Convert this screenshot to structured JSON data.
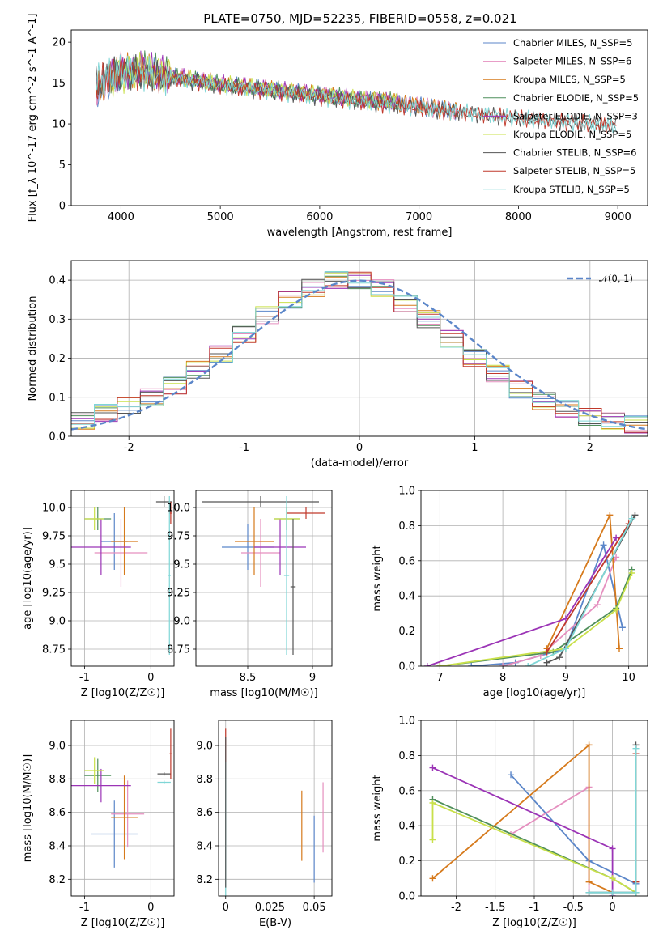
{
  "figure_title": "PLATE=0750, MJD=52235, FIBERID=0558, z=0.021",
  "chart_data": [
    {
      "id": "spectrum",
      "type": "line",
      "xlabel": "wavelength [Angstrom, rest frame]",
      "ylabel": "Flux [f_λ 10^-17 erg cm^-2 s^-1 A^-1]",
      "xlim": [
        3500,
        9300
      ],
      "ylim": [
        0,
        21.5
      ],
      "xticks": [
        4000,
        5000,
        6000,
        7000,
        8000,
        9000
      ],
      "yticks": [
        0,
        5,
        10,
        15,
        20
      ],
      "grid": false,
      "legend_position": "top-right",
      "series": [
        {
          "name": "Chabrier MILES, N_SSP=5",
          "color": "#5b86c9",
          "x": [
            3750,
            4000,
            4500,
            5000,
            5500,
            6000,
            6500,
            6800,
            7000,
            7200,
            7400
          ],
          "y": [
            14,
            16.5,
            15.8,
            14.8,
            14.2,
            13.5,
            12.8,
            12.5,
            12.2,
            11.8,
            11.5
          ]
        },
        {
          "name": "Salpeter MILES, N_SSP=6",
          "color": "#e58fbf",
          "x": [
            3750,
            4000,
            4500,
            5000,
            5500,
            6000,
            6500,
            6800,
            7000,
            7200,
            7400
          ],
          "y": [
            14,
            16.6,
            15.9,
            14.8,
            14.2,
            13.5,
            12.9,
            12.5,
            12.2,
            11.8,
            11.5
          ]
        },
        {
          "name": "Kroupa MILES, N_SSP=5",
          "color": "#d67a1c",
          "x": [
            3750,
            4000,
            4500,
            5000,
            5500,
            6000,
            6500,
            6800,
            7000,
            7200,
            7400
          ],
          "y": [
            14,
            16.6,
            15.9,
            14.9,
            14.2,
            13.6,
            12.9,
            12.6,
            12.2,
            11.8,
            11.5
          ]
        },
        {
          "name": "Chabrier ELODIE, N_SSP=5",
          "color": "#4f8f5b",
          "x": [
            3900,
            4200,
            4500,
            5000,
            5500,
            6000,
            6500,
            6800
          ],
          "y": [
            15.5,
            16.8,
            15.9,
            14.9,
            14.3,
            13.6,
            13,
            12.7
          ]
        },
        {
          "name": "Salpeter ELODIE, N_SSP=3",
          "color": "#9b34b6",
          "x": [
            3900,
            4200,
            4500,
            5000,
            5500,
            6000,
            6500,
            6800
          ],
          "y": [
            15.6,
            16.9,
            16,
            14.9,
            14.3,
            13.6,
            13,
            12.7
          ]
        },
        {
          "name": "Kroupa ELODIE, N_SSP=5",
          "color": "#c9e04a",
          "x": [
            3900,
            4200,
            4500,
            5000,
            5500,
            6000,
            6500,
            6800
          ],
          "y": [
            15.5,
            16.8,
            15.9,
            14.9,
            14.3,
            13.6,
            13,
            12.8
          ]
        },
        {
          "name": "Chabrier STELIB, N_SSP=6",
          "color": "#555555",
          "x": [
            3750,
            4000,
            4500,
            5000,
            5500,
            6000,
            6500,
            7000,
            7500,
            8000,
            8500,
            9000
          ],
          "y": [
            15,
            16.4,
            15.6,
            14.6,
            14,
            13.3,
            12.6,
            12,
            11.3,
            10.7,
            10.2,
            9.8
          ]
        },
        {
          "name": "Salpeter STELIB, N_SSP=5",
          "color": "#c0392b",
          "x": [
            3750,
            4000,
            4500,
            5000,
            5500,
            6000,
            6500,
            7000,
            7500,
            8000,
            8500,
            9000
          ],
          "y": [
            15,
            16.5,
            15.6,
            14.7,
            14,
            13.3,
            12.6,
            12,
            11.3,
            10.7,
            10.2,
            9.8
          ]
        },
        {
          "name": "Kroupa STELIB, N_SSP=5",
          "color": "#7fd6d6",
          "x": [
            3750,
            4000,
            4500,
            5000,
            5500,
            6000,
            6500,
            7000,
            7500,
            8000,
            8500,
            9000
          ],
          "y": [
            15,
            16.5,
            15.6,
            14.7,
            14,
            13.3,
            12.6,
            12,
            11.4,
            10.7,
            10.2,
            9.8
          ]
        }
      ]
    },
    {
      "id": "residuals",
      "type": "line",
      "xlabel": "(data-model)/error",
      "ylabel": "Normed distribution",
      "xlim": [
        -2.5,
        2.5
      ],
      "ylim": [
        0,
        0.45
      ],
      "xticks": [
        -2,
        -1,
        0,
        1,
        2
      ],
      "yticks": [
        0.0,
        0.1,
        0.2,
        0.3,
        0.4
      ],
      "grid": true,
      "legend_position": "top-right",
      "legend": "𝒩(0, 1)",
      "gaussian_color": "#5b86c9",
      "histogram_bins_x": [
        -2.5,
        -2.3,
        -2.1,
        -1.9,
        -1.7,
        -1.5,
        -1.3,
        -1.1,
        -0.9,
        -0.7,
        -0.5,
        -0.3,
        -0.1,
        0.1,
        0.3,
        0.5,
        0.7,
        0.9,
        1.1,
        1.3,
        1.5,
        1.7,
        1.9,
        2.1,
        2.3,
        2.5
      ],
      "histogram_values": [
        0.04,
        0.06,
        0.08,
        0.1,
        0.13,
        0.17,
        0.21,
        0.26,
        0.31,
        0.35,
        0.38,
        0.4,
        0.4,
        0.38,
        0.34,
        0.3,
        0.25,
        0.2,
        0.16,
        0.12,
        0.09,
        0.07,
        0.05,
        0.04,
        0.03
      ]
    },
    {
      "id": "age_vs_Z",
      "type": "scatter",
      "xlabel": "Z [log10(Z/Z☉)]",
      "ylabel": "age [log10(age/yr)]",
      "xlim": [
        -1.2,
        0.35
      ],
      "ylim": [
        8.6,
        10.15
      ],
      "xticks": [
        -1,
        0
      ],
      "yticks": [
        8.75,
        9.0,
        9.25,
        9.5,
        9.75,
        10.0
      ],
      "grid": true,
      "points": [
        {
          "color": "#5b86c9",
          "x": -0.55,
          "xerr": 0.2,
          "y": 9.7,
          "yerr": 0.25
        },
        {
          "color": "#e58fbf",
          "x": -0.45,
          "xerr": 0.4,
          "y": 9.6,
          "yerr": 0.3
        },
        {
          "color": "#d67a1c",
          "x": -0.4,
          "xerr": 0.2,
          "y": 9.7,
          "yerr": 0.3
        },
        {
          "color": "#4f8f5b",
          "x": -0.8,
          "xerr": 0.2,
          "y": 9.9,
          "yerr": 0.1
        },
        {
          "color": "#9b34b6",
          "x": -0.75,
          "xerr": 0.45,
          "y": 9.65,
          "yerr": 0.25
        },
        {
          "color": "#c9e04a",
          "x": -0.85,
          "xerr": 0.15,
          "y": 9.9,
          "yerr": 0.1
        },
        {
          "color": "#555555",
          "x": 0.2,
          "xerr": 0.12,
          "y": 10.05,
          "yerr": 0.05
        },
        {
          "color": "#c0392b",
          "x": 0.3,
          "xerr": 0.02,
          "y": 9.95,
          "yerr": 0.1
        },
        {
          "color": "#7fd6d6",
          "x": 0.28,
          "xerr": 0.02,
          "y": 9.4,
          "yerr": 0.7
        }
      ]
    },
    {
      "id": "age_vs_mass",
      "type": "scatter",
      "xlabel": "mass [log10(M/M☉)]",
      "ylabel": "",
      "xlim": [
        8.1,
        9.15
      ],
      "ylim": [
        8.6,
        10.15
      ],
      "xticks": [
        8.5,
        9.0
      ],
      "yticks": [
        8.75,
        9.0,
        9.25,
        9.5,
        9.75,
        10.0
      ],
      "grid": true,
      "points": [
        {
          "color": "#5b86c9",
          "x": 8.5,
          "xerr": 0.2,
          "y": 9.65,
          "yerr": 0.2
        },
        {
          "color": "#e58fbf",
          "x": 8.6,
          "xerr": 0.15,
          "y": 9.6,
          "yerr": 0.3
        },
        {
          "color": "#d67a1c",
          "x": 8.55,
          "xerr": 0.15,
          "y": 9.7,
          "yerr": 0.3
        },
        {
          "color": "#4f8f5b",
          "x": 8.8,
          "xerr": 0.1,
          "y": 9.9,
          "yerr": 0.1
        },
        {
          "color": "#9b34b6",
          "x": 8.75,
          "xerr": 0.2,
          "y": 9.65,
          "yerr": 0.25
        },
        {
          "color": "#c9e04a",
          "x": 8.8,
          "xerr": 0.1,
          "y": 9.9,
          "yerr": 0.1
        },
        {
          "color": "#555555",
          "x": 8.6,
          "xerr": 0.45,
          "y": 10.05,
          "yerr": 0.05
        },
        {
          "color": "#c0392b",
          "x": 8.95,
          "xerr": 0.15,
          "y": 9.95,
          "yerr": 0.05
        },
        {
          "color": "#7fd6d6",
          "x": 8.8,
          "xerr": 0.02,
          "y": 9.4,
          "yerr": 0.7
        },
        {
          "color": "#555555",
          "x": 8.85,
          "xerr": 0.02,
          "y": 9.3,
          "yerr": 0.6
        }
      ]
    },
    {
      "id": "massweight_vs_age",
      "type": "line",
      "xlabel": "age [log10(age/yr)]",
      "ylabel": "mass weight",
      "xlim": [
        6.7,
        10.3
      ],
      "ylim": [
        0,
        1
      ],
      "xticks": [
        7,
        8,
        9,
        10
      ],
      "yticks": [
        0.0,
        0.2,
        0.4,
        0.6,
        0.8,
        1.0
      ],
      "grid": true,
      "series": [
        {
          "color": "#5b86c9",
          "x": [
            7.5,
            8.2,
            9,
            9.6,
            9.9
          ],
          "y": [
            0,
            0.02,
            0.1,
            0.69,
            0.22
          ]
        },
        {
          "color": "#e58fbf",
          "x": [
            8.0,
            8.6,
            9.5,
            9.8
          ],
          "y": [
            0,
            0.06,
            0.35,
            0.62
          ]
        },
        {
          "color": "#d67a1c",
          "x": [
            8.7,
            9.7,
            9.85
          ],
          "y": [
            0.1,
            0.86,
            0.1
          ]
        },
        {
          "color": "#4f8f5b",
          "x": [
            7.0,
            8.8,
            9.8,
            10.05
          ],
          "y": [
            0,
            0.08,
            0.33,
            0.55
          ]
        },
        {
          "color": "#9b34b6",
          "x": [
            6.8,
            9.0,
            9.8
          ],
          "y": [
            0,
            0.27,
            0.73
          ]
        },
        {
          "color": "#c9e04a",
          "x": [
            7.0,
            9.0,
            9.8,
            10.05
          ],
          "y": [
            0,
            0.1,
            0.32,
            0.53
          ]
        },
        {
          "color": "#555555",
          "x": [
            8.7,
            8.9,
            10.1
          ],
          "y": [
            0.02,
            0.05,
            0.86
          ]
        },
        {
          "color": "#c0392b",
          "x": [
            8.7,
            10.0
          ],
          "y": [
            0.08,
            0.81
          ]
        },
        {
          "color": "#7fd6d6",
          "x": [
            8.4,
            9.0,
            10.05
          ],
          "y": [
            0,
            0.1,
            0.84
          ]
        }
      ]
    },
    {
      "id": "mass_vs_Z",
      "type": "scatter",
      "xlabel": "Z [log10(Z/Z☉)]",
      "ylabel": "mass [log10(M/M☉)]",
      "xlim": [
        -1.2,
        0.35
      ],
      "ylim": [
        8.1,
        9.15
      ],
      "xticks": [
        -1,
        0
      ],
      "yticks": [
        8.2,
        8.4,
        8.6,
        8.8,
        9.0
      ],
      "grid": true,
      "points": [
        {
          "color": "#5b86c9",
          "x": -0.55,
          "xerr": 0.35,
          "y": 8.47,
          "yerr": 0.2
        },
        {
          "color": "#e58fbf",
          "x": -0.35,
          "xerr": 0.25,
          "y": 8.59,
          "yerr": 0.2
        },
        {
          "color": "#d67a1c",
          "x": -0.4,
          "xerr": 0.2,
          "y": 8.57,
          "yerr": 0.25
        },
        {
          "color": "#4f8f5b",
          "x": -0.8,
          "xerr": 0.2,
          "y": 8.82,
          "yerr": 0.1
        },
        {
          "color": "#9b34b6",
          "x": -0.75,
          "xerr": 0.45,
          "y": 8.76,
          "yerr": 0.1
        },
        {
          "color": "#c9e04a",
          "x": -0.85,
          "xerr": 0.15,
          "y": 8.85,
          "yerr": 0.08
        },
        {
          "color": "#555555",
          "x": 0.2,
          "xerr": 0.1,
          "y": 8.83,
          "yerr": 0.01
        },
        {
          "color": "#c0392b",
          "x": 0.3,
          "xerr": 0.02,
          "y": 8.95,
          "yerr": 0.15
        },
        {
          "color": "#7fd6d6",
          "x": 0.2,
          "xerr": 0.1,
          "y": 8.78,
          "yerr": 0.01
        }
      ]
    },
    {
      "id": "mass_vs_ebv",
      "type": "scatter",
      "xlabel": "E(B-V)",
      "ylabel": "",
      "xlim": [
        -0.004,
        0.06
      ],
      "ylim": [
        8.1,
        9.15
      ],
      "xticks": [
        0.0,
        0.025,
        0.05
      ],
      "yticks": [
        8.2,
        8.4,
        8.6,
        8.8,
        9.0
      ],
      "grid": true,
      "points": [
        {
          "color": "#5b86c9",
          "x": 0.05,
          "xerr": 0,
          "y": 8.38,
          "yerr": 0.2
        },
        {
          "color": "#e58fbf",
          "x": 0.055,
          "xerr": 0,
          "y": 8.57,
          "yerr": 0.21
        },
        {
          "color": "#d67a1c",
          "x": 0.043,
          "xerr": 0,
          "y": 8.52,
          "yerr": 0.21
        },
        {
          "color": "#c0392b",
          "x": 0.0,
          "xerr": 0,
          "y": 8.95,
          "yerr": 0.15
        },
        {
          "color": "#7fd6d6",
          "x": 0.0,
          "xerr": 0,
          "y": 8.5,
          "yerr": 0.4
        },
        {
          "color": "#555555",
          "x": 0.0,
          "xerr": 0,
          "y": 8.6,
          "yerr": 0.45
        }
      ]
    },
    {
      "id": "massweight_vs_Z",
      "type": "line",
      "xlabel": "Z [log10(Z/Z☉)]",
      "ylabel": "mass weight",
      "xlim": [
        -2.45,
        0.45
      ],
      "ylim": [
        0,
        1
      ],
      "xticks": [
        -2.0,
        -1.5,
        -1.0,
        -0.5,
        0.0
      ],
      "yticks": [
        0.0,
        0.2,
        0.4,
        0.6,
        0.8,
        1.0
      ],
      "grid": true,
      "series": [
        {
          "color": "#5b86c9",
          "x": [
            -1.3,
            -0.3,
            0.3
          ],
          "y": [
            0.69,
            0.2,
            0.07
          ]
        },
        {
          "color": "#e58fbf",
          "x": [
            -1.3,
            -0.3,
            -0.3
          ],
          "y": [
            0.35,
            0.62,
            0.02
          ]
        },
        {
          "color": "#d67a1c",
          "x": [
            -2.3,
            -0.3,
            -0.3,
            0.0
          ],
          "y": [
            0.1,
            0.86,
            0.08,
            0.02
          ]
        },
        {
          "color": "#4f8f5b",
          "x": [
            -2.3,
            0.0,
            0.3
          ],
          "y": [
            0.55,
            0.1,
            0.02
          ]
        },
        {
          "color": "#9b34b6",
          "x": [
            -2.3,
            0.0,
            0.0
          ],
          "y": [
            0.73,
            0.27,
            0.0
          ]
        },
        {
          "color": "#c9e04a",
          "x": [
            -2.3,
            -2.3,
            0.0,
            0.3
          ],
          "y": [
            0.32,
            0.53,
            0.1,
            0.02
          ]
        },
        {
          "color": "#555555",
          "x": [
            -0.3,
            0.3,
            0.3
          ],
          "y": [
            0.02,
            0.02,
            0.86
          ]
        },
        {
          "color": "#c0392b",
          "x": [
            0.3,
            0.3
          ],
          "y": [
            0.08,
            0.81
          ]
        },
        {
          "color": "#7fd6d6",
          "x": [
            -0.3,
            0.0,
            0.3,
            0.3
          ],
          "y": [
            0.02,
            0.02,
            0.02,
            0.84
          ]
        }
      ]
    }
  ]
}
